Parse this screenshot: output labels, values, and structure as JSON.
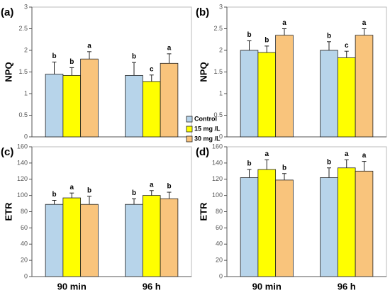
{
  "chart_data": [
    {
      "type": "bar",
      "panel_label": "(a)",
      "ylabel": "NPQ",
      "categories": [
        null,
        null
      ],
      "ylim": [
        0,
        3
      ],
      "yticks": [
        0,
        0.5,
        1,
        1.5,
        2,
        2.5,
        3
      ],
      "series": [
        {
          "name": "Control",
          "color": "#b7d4ea",
          "values": [
            1.45,
            1.42
          ],
          "errors": [
            0.28,
            0.3
          ],
          "labels": [
            "b",
            "b"
          ]
        },
        {
          "name": "15 mg /L",
          "color": "#ffff00",
          "values": [
            1.42,
            1.28
          ],
          "errors": [
            0.18,
            0.15
          ],
          "labels": [
            "b",
            "c"
          ]
        },
        {
          "name": "30 mg /L",
          "color": "#f9c47c",
          "values": [
            1.8,
            1.7
          ],
          "errors": [
            0.17,
            0.22
          ],
          "labels": [
            "a",
            "a"
          ]
        }
      ]
    },
    {
      "type": "bar",
      "panel_label": "(b)",
      "ylabel": "NPQ",
      "categories": [
        null,
        null
      ],
      "ylim": [
        0,
        3
      ],
      "yticks": [
        0,
        0.5,
        1,
        1.5,
        2,
        2.5,
        3
      ],
      "series": [
        {
          "color": "#b7d4ea",
          "values": [
            2.0,
            2.0
          ],
          "errors": [
            0.22,
            0.2
          ],
          "labels": [
            "b",
            "b"
          ]
        },
        {
          "color": "#ffff00",
          "values": [
            1.95,
            1.83
          ],
          "errors": [
            0.15,
            0.15
          ],
          "labels": [
            "b",
            "c"
          ]
        },
        {
          "color": "#f9c47c",
          "values": [
            2.35,
            2.35
          ],
          "errors": [
            0.15,
            0.15
          ],
          "labels": [
            "a",
            "a"
          ]
        }
      ]
    },
    {
      "type": "bar",
      "panel_label": "(c)",
      "ylabel": "ETR",
      "categories": [
        "90 min",
        "96 h"
      ],
      "ylim": [
        0,
        160
      ],
      "yticks": [
        0,
        20,
        40,
        60,
        80,
        100,
        120,
        140,
        160
      ],
      "series": [
        {
          "color": "#b7d4ea",
          "values": [
            89,
            89
          ],
          "errors": [
            5,
            7
          ],
          "labels": [
            "b",
            "b"
          ]
        },
        {
          "color": "#ffff00",
          "values": [
            97,
            100
          ],
          "errors": [
            6,
            6
          ],
          "labels": [
            "a",
            "a"
          ]
        },
        {
          "color": "#f9c47c",
          "values": [
            89,
            96
          ],
          "errors": [
            10,
            8
          ],
          "labels": [
            "b",
            "b"
          ]
        }
      ]
    },
    {
      "type": "bar",
      "panel_label": "(d)",
      "ylabel": "ETR",
      "categories": [
        "90 min",
        "96 h"
      ],
      "ylim": [
        0,
        160
      ],
      "yticks": [
        0,
        20,
        40,
        60,
        80,
        100,
        120,
        140,
        160
      ],
      "series": [
        {
          "color": "#b7d4ea",
          "values": [
            122,
            122
          ],
          "errors": [
            10,
            12
          ],
          "labels": [
            "b",
            "b"
          ]
        },
        {
          "color": "#ffff00",
          "values": [
            132,
            134
          ],
          "errors": [
            12,
            10
          ],
          "labels": [
            "a",
            "a"
          ]
        },
        {
          "color": "#f9c47c",
          "values": [
            119,
            130
          ],
          "errors": [
            8,
            12
          ],
          "labels": [
            "b",
            "a"
          ]
        }
      ]
    }
  ]
}
